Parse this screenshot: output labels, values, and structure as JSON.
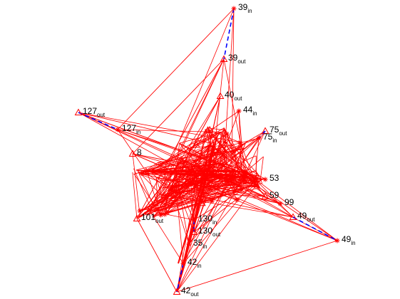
{
  "colors": {
    "edge": "#ff0000",
    "dashed": "#0000ff",
    "marker": "#ff0000",
    "label": "#000000",
    "background": "#ffffff"
  },
  "nodes": [
    {
      "id": "n39in",
      "num": "39",
      "sub": "in",
      "marker": "star"
    },
    {
      "id": "n39out",
      "num": "39",
      "sub": "out",
      "marker": "triangle"
    },
    {
      "id": "n40out",
      "num": "40",
      "sub": "out",
      "marker": "triangle"
    },
    {
      "id": "n44in",
      "num": "44",
      "sub": "in",
      "marker": "star"
    },
    {
      "id": "n127out",
      "num": "127",
      "sub": "out",
      "marker": "triangle"
    },
    {
      "id": "n127in",
      "num": "127",
      "sub": "in",
      "marker": "star"
    },
    {
      "id": "n75out",
      "num": "75",
      "sub": "out",
      "marker": "triangle"
    },
    {
      "id": "n75in",
      "num": "75",
      "sub": "in",
      "marker": "star"
    },
    {
      "id": "n8",
      "num": "8",
      "sub": "",
      "marker": "triangle"
    },
    {
      "id": "n59",
      "num": "59",
      "sub": "",
      "marker": "triangle"
    },
    {
      "id": "n99",
      "num": "99",
      "sub": "",
      "marker": "star"
    },
    {
      "id": "n49out",
      "num": "49",
      "sub": "out",
      "marker": "triangle"
    },
    {
      "id": "n49in",
      "num": "49",
      "sub": "in",
      "marker": "star"
    },
    {
      "id": "n130in",
      "num": "130",
      "sub": "in",
      "marker": "star"
    },
    {
      "id": "n130out",
      "num": "130",
      "sub": "out",
      "marker": "triangle"
    },
    {
      "id": "n35in",
      "num": "35",
      "sub": "in",
      "marker": "star"
    },
    {
      "id": "n42in",
      "num": "42",
      "sub": "in",
      "marker": "star"
    },
    {
      "id": "n42out",
      "num": "42",
      "sub": "out",
      "marker": "triangle"
    },
    {
      "id": "n101out",
      "num": "101",
      "sub": "out",
      "marker": "triangle"
    },
    {
      "id": "n53",
      "num": "53",
      "sub": "",
      "marker": "star"
    }
  ]
}
